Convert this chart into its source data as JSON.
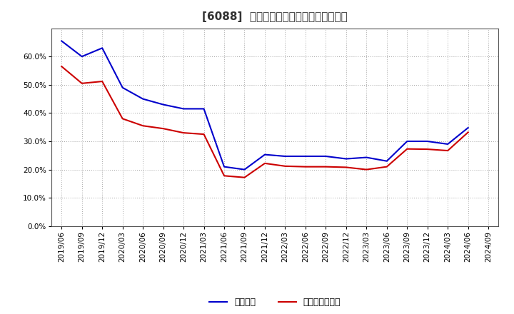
{
  "title": "[6088]  固定比率、固定長期適合率の推移",
  "x_labels": [
    "2019/06",
    "2019/09",
    "2019/12",
    "2020/03",
    "2020/06",
    "2020/09",
    "2020/12",
    "2021/03",
    "2021/06",
    "2021/09",
    "2021/12",
    "2022/03",
    "2022/06",
    "2022/09",
    "2022/12",
    "2023/03",
    "2023/06",
    "2023/09",
    "2023/12",
    "2024/03",
    "2024/06",
    "2024/09"
  ],
  "fixed_ratio": [
    0.655,
    0.6,
    0.63,
    0.49,
    0.45,
    0.43,
    0.415,
    0.415,
    0.21,
    0.2,
    0.253,
    0.247,
    0.247,
    0.247,
    0.238,
    0.243,
    0.23,
    0.3,
    0.3,
    0.29,
    0.348,
    null
  ],
  "fixed_long_ratio": [
    0.565,
    0.505,
    0.512,
    0.38,
    0.355,
    0.345,
    0.33,
    0.325,
    0.178,
    0.172,
    0.222,
    0.212,
    0.21,
    0.21,
    0.208,
    0.2,
    0.21,
    0.273,
    0.272,
    0.267,
    0.332,
    null
  ],
  "line1_color": "#0000cc",
  "line2_color": "#cc0000",
  "line1_label": "固定比率",
  "line2_label": "固定長期適合率",
  "ylim": [
    0.0,
    0.7
  ],
  "yticks": [
    0.0,
    0.1,
    0.2,
    0.3,
    0.4,
    0.5,
    0.6
  ],
  "bg_color": "#ffffff",
  "grid_color": "#999999",
  "title_fontsize": 11,
  "axis_fontsize": 7.5,
  "legend_fontsize": 9
}
